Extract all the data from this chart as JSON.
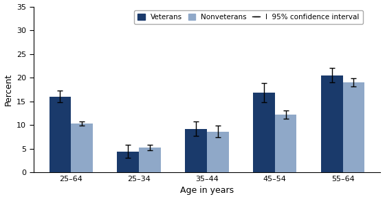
{
  "categories": [
    "25–64",
    "25–34",
    "35–44",
    "45–54",
    "55–64"
  ],
  "veterans_values": [
    16.0,
    4.4,
    9.2,
    16.8,
    20.5
  ],
  "nonveterans_values": [
    10.3,
    5.2,
    8.6,
    12.2,
    19.0
  ],
  "veterans_errors": [
    1.2,
    1.4,
    1.5,
    2.0,
    1.5
  ],
  "nonveterans_errors": [
    0.5,
    0.6,
    1.2,
    0.9,
    0.9
  ],
  "veterans_color": "#1a3a6b",
  "nonveterans_color": "#8fa8c8",
  "bar_width": 0.32,
  "ylim": [
    0,
    35
  ],
  "yticks": [
    0,
    5,
    10,
    15,
    20,
    25,
    30,
    35
  ],
  "ylabel": "Percent",
  "xlabel": "Age in years",
  "legend_labels": [
    "Veterans",
    "Nonveterans",
    "I  95% confidence interval"
  ],
  "background_color": "#ffffff",
  "error_capsize": 3,
  "error_color": "black",
  "error_linewidth": 1.0
}
